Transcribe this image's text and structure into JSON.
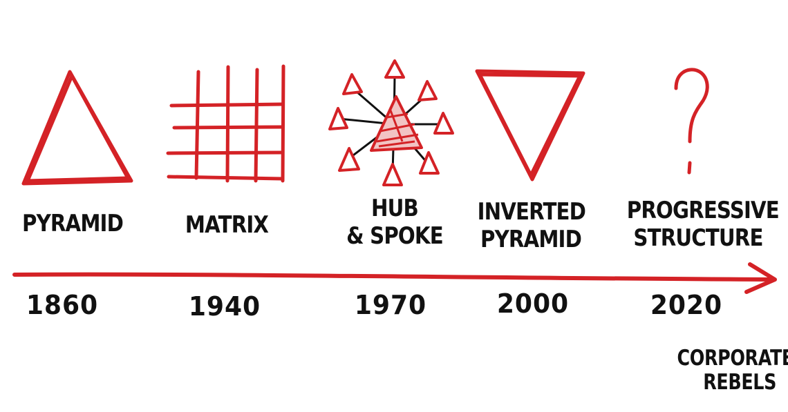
{
  "colors": {
    "accent": "#d42226",
    "ink": "#111111",
    "background": "#ffffff"
  },
  "timeline": [
    {
      "year": "1860",
      "label_lines": [
        "PYRAMID"
      ],
      "icon": "pyramid-icon"
    },
    {
      "year": "1940",
      "label_lines": [
        "MATRIX"
      ],
      "icon": "matrix-icon"
    },
    {
      "year": "1970",
      "label_lines": [
        "HUB",
        "& SPOKE"
      ],
      "icon": "hub-spoke-icon"
    },
    {
      "year": "2000",
      "label_lines": [
        "INVERTED",
        "PYRAMID"
      ],
      "icon": "inverted-pyramid-icon"
    },
    {
      "year": "2020",
      "label_lines": [
        "PROGRESSIVE",
        "STRUCTURE"
      ],
      "icon": "question-mark-icon"
    }
  ],
  "brand": {
    "line1": "CORPORATE",
    "line2": "REBELS"
  }
}
